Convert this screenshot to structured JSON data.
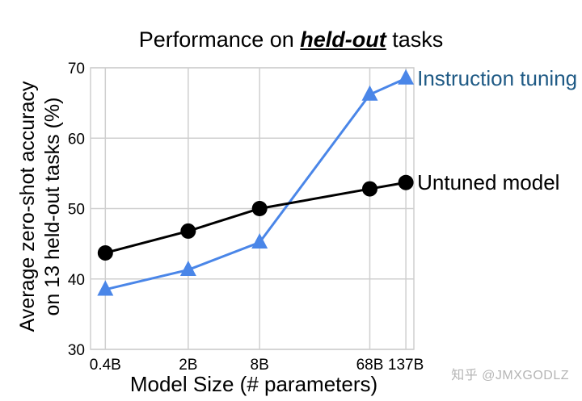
{
  "chart_data": {
    "type": "line",
    "title_parts": [
      "Performance on ",
      "held-out",
      " tasks"
    ],
    "xlabel": "Model Size (# parameters)",
    "ylabel_lines": [
      "Average zero-shot accuracy",
      "on 13 held-out tasks (%)"
    ],
    "categories": [
      "0.4B",
      "2B",
      "8B",
      "68B",
      "137B"
    ],
    "x": [
      0.4,
      2,
      8,
      68,
      137
    ],
    "x_scale": "log",
    "ylim": [
      30,
      70
    ],
    "yticks": [
      30,
      40,
      50,
      60,
      70
    ],
    "grid": true,
    "series": [
      {
        "name": "Instruction tuning",
        "values": [
          38.5,
          41.3,
          45.2,
          66.2,
          68.5
        ],
        "color": "#4a86e8",
        "marker": "triangle",
        "label_color": "#1f5a85"
      },
      {
        "name": "Untuned model",
        "values": [
          43.7,
          46.8,
          50.0,
          52.8,
          53.7
        ],
        "color": "#000000",
        "marker": "circle",
        "label_color": "#000000"
      }
    ]
  },
  "watermark": "知乎 @JMXGODLZ"
}
